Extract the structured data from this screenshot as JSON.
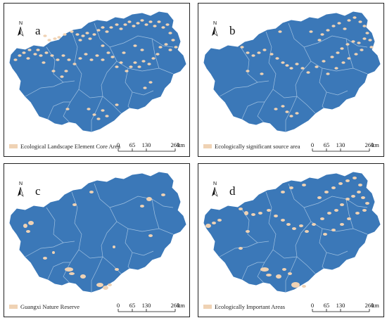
{
  "colors": {
    "region_fill": "#3b78b8",
    "boundary_line": "#9fc0e0",
    "highlight_fill": "#efd2b4",
    "frame": "#222222",
    "text": "#111111"
  },
  "north_arrow": {
    "label": "N"
  },
  "scale_bar": {
    "ticks": [
      "0",
      "65",
      "130",
      "260"
    ],
    "unit": "km"
  },
  "panels": [
    {
      "id": "a",
      "letter": "a",
      "legend_label": "Ecological Landscape Element Core Area"
    },
    {
      "id": "b",
      "letter": "b",
      "legend_label": "Ecologically significant source area"
    },
    {
      "id": "c",
      "letter": "c",
      "legend_label": "Guangxi Nature Reserve"
    },
    {
      "id": "d",
      "letter": "d",
      "legend_label": "Ecologically Important Areas"
    }
  ]
}
